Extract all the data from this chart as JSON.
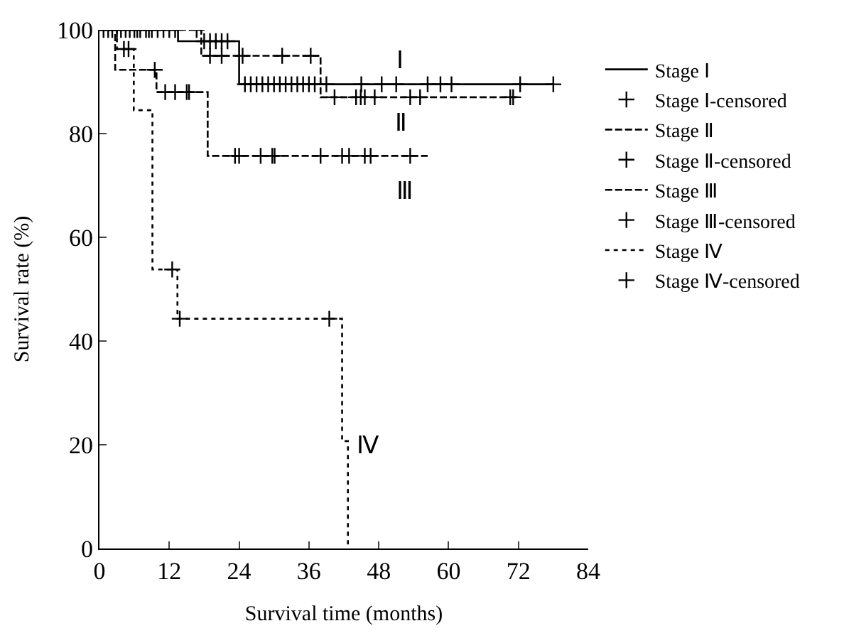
{
  "chart_data": {
    "type": "step",
    "xlabel": "Survival time (months)",
    "ylabel": "Survival rate (%)",
    "xlim": [
      0,
      84
    ],
    "xticks": [
      0,
      12,
      24,
      36,
      48,
      60,
      72,
      84
    ],
    "ylim": [
      0,
      100
    ],
    "yticks": [
      0,
      20,
      40,
      60,
      80,
      100
    ],
    "legend": "right",
    "annotations": [
      "Ⅰ",
      "Ⅱ",
      "Ⅲ",
      {
        "text": "Ⅳ",
        "x": 42.7,
        "y": 20
      }
    ],
    "series": [
      {
        "name": "Stage Ⅰ",
        "line_style": "solid",
        "color": "#000000",
        "x": [
          0,
          13.5,
          24,
          78
        ],
        "values": [
          100,
          97.8,
          89.5,
          89.5
        ]
      },
      {
        "name": "Stage Ⅰ-censored",
        "type": "scatter",
        "marker": "cross",
        "color": "#000000",
        "x": [
          0.7,
          1.5,
          2.2,
          3,
          3.7,
          4.5,
          5.2,
          6,
          6.5,
          7,
          8,
          8.5,
          9,
          10,
          11,
          12,
          13,
          18,
          19,
          20,
          21,
          22,
          25,
          26,
          27,
          28,
          29,
          30,
          31,
          32,
          33,
          34,
          35,
          36,
          37,
          39,
          45,
          48.5,
          51,
          56.4,
          58.6,
          60.5,
          72.3,
          78
        ],
        "values": [
          100,
          100,
          100,
          100,
          100,
          100,
          100,
          100,
          100,
          100,
          100,
          100,
          100,
          100,
          100,
          100,
          100,
          97.8,
          97.8,
          97.8,
          97.8,
          97.8,
          89.5,
          89.5,
          89.5,
          89.5,
          89.5,
          89.5,
          89.5,
          89.5,
          89.5,
          89.5,
          89.5,
          89.5,
          89.5,
          89.5,
          89.5,
          89.5,
          89.5,
          89.5,
          89.5,
          89.5,
          89.5,
          89.5
        ]
      },
      {
        "name": "Stage Ⅱ",
        "line_style": "dashed",
        "color": "#000000",
        "x": [
          0,
          17.5,
          38,
          72
        ],
        "values": [
          100,
          95,
          87,
          87
        ]
      },
      {
        "name": "Stage Ⅱ-censored",
        "type": "scatter",
        "marker": "cross",
        "color": "#000000",
        "x": [
          16.7,
          19,
          21,
          24.6,
          31.4,
          36.3,
          40.4,
          44.1,
          44.9,
          45.6,
          47.3,
          53.4,
          55.1,
          70.6,
          71.1
        ],
        "values": [
          100,
          95,
          95,
          95,
          95,
          95,
          87,
          87,
          87,
          87,
          87,
          87,
          87,
          87,
          87
        ]
      },
      {
        "name": "Stage Ⅲ",
        "line_style": "dashed",
        "color": "#000000",
        "x": [
          0,
          2.7,
          9.8,
          18.6,
          56.4
        ],
        "values": [
          100,
          92.3,
          88,
          75.7,
          75.7
        ]
      },
      {
        "name": "Stage Ⅲ-censored",
        "type": "scatter",
        "marker": "cross",
        "color": "#000000",
        "x": [
          9.5,
          11.3,
          13,
          15,
          15.4,
          23.3,
          24,
          27.7,
          29.7,
          30.1,
          38,
          41.7,
          42.9,
          45.6,
          46.6,
          53.4
        ],
        "values": [
          92.3,
          88,
          88,
          88,
          88,
          75.7,
          75.7,
          75.7,
          75.7,
          75.7,
          75.7,
          75.7,
          75.7,
          75.7,
          75.7,
          75.7
        ]
      },
      {
        "name": "Stage Ⅳ",
        "line_style": "dotted",
        "color": "#000000",
        "x": [
          0,
          3,
          5.9,
          9.1,
          13.4,
          41.7,
          42.7
        ],
        "values": [
          100,
          96.3,
          84.5,
          53.8,
          44.3,
          20.7,
          0
        ]
      },
      {
        "name": "Stage Ⅳ-censored",
        "type": "scatter",
        "marker": "cross",
        "color": "#000000",
        "x": [
          4.2,
          5,
          12.5,
          13.8,
          39.5
        ],
        "values": [
          96.3,
          96.3,
          53.8,
          44.3,
          44.3
        ]
      }
    ]
  }
}
